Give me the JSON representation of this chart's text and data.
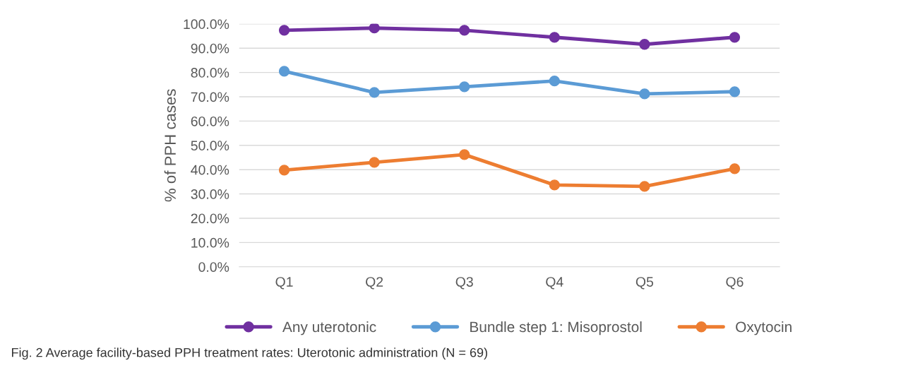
{
  "chart_data": {
    "type": "line",
    "ylabel": "% of PPH cases",
    "categories": [
      "Q1",
      "Q2",
      "Q3",
      "Q4",
      "Q5",
      "Q6"
    ],
    "series": [
      {
        "name": "Any uterotonic",
        "color": "#7030a0",
        "values": [
          97.4,
          98.3,
          97.4,
          94.5,
          91.6,
          94.5
        ]
      },
      {
        "name": "Bundle step 1: Misoprostol",
        "color": "#5b9bd5",
        "values": [
          80.5,
          71.8,
          74.1,
          76.5,
          71.2,
          72.1
        ]
      },
      {
        "name": "Oxytocin",
        "color": "#ed7d31",
        "values": [
          39.8,
          43.0,
          46.2,
          33.7,
          33.1,
          40.4
        ]
      }
    ],
    "ylim": [
      0,
      100
    ],
    "yticks": [
      {
        "value": 0,
        "label": "0.0%"
      },
      {
        "value": 10,
        "label": "10.0%"
      },
      {
        "value": 20,
        "label": "20.0%"
      },
      {
        "value": 30,
        "label": "30.0%"
      },
      {
        "value": 40,
        "label": "40.0%"
      },
      {
        "value": 50,
        "label": "50.0%"
      },
      {
        "value": 60,
        "label": "60.0%"
      },
      {
        "value": 70,
        "label": "70.0%"
      },
      {
        "value": 80,
        "label": "80.0%"
      },
      {
        "value": 90,
        "label": "90.0%"
      },
      {
        "value": 100,
        "label": "100.0%"
      }
    ],
    "grid": "y",
    "legend": "bottom",
    "marker": "circle",
    "line_style": "solid",
    "annotations": [
      "Fig. 2 Average facility-based PPH treatment rates: Uterotonic administration (N = 69)"
    ]
  }
}
